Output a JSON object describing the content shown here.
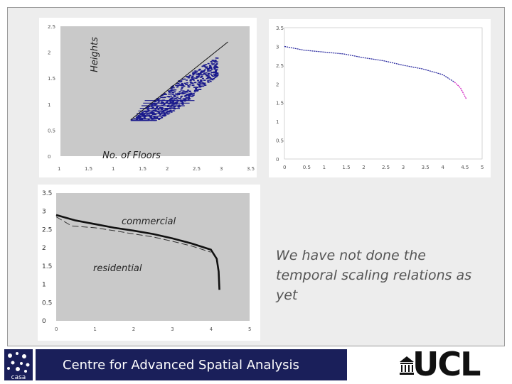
{
  "slide": {
    "statement": "We have not done the temporal scaling relations as yet",
    "footer_text": "Centre for Advanced Spatial Analysis",
    "casa_logo_text": "casa",
    "ucl_logo_text": "UCL"
  },
  "colors": {
    "footer_bar": "#1a1f5a",
    "scatter_points": "#1a1a8c",
    "curve_blue": "#2a2aa0",
    "curve_magenta": "#d020c0",
    "plot_background": "#c9c9c9"
  },
  "chart_data": [
    {
      "type": "scatter",
      "xlabel": "No. of Floors",
      "ylabel": "Heights",
      "x_ticks": [
        "1",
        "1.5",
        "1",
        "1.5",
        "2",
        "2.5",
        "3",
        "3.5"
      ],
      "y_ticks": [
        "2.5",
        "2",
        "1.5",
        "1",
        "0.5",
        "0"
      ],
      "xlim": [
        0,
        3.5
      ],
      "ylim": [
        0,
        2.5
      ],
      "trend_line": [
        [
          1.3,
          0.7
        ],
        [
          3.1,
          2.2
        ]
      ],
      "point_cloud": {
        "x_range": [
          1.3,
          2.9
        ],
        "y_range": [
          0.7,
          1.9
        ]
      },
      "grid": false
    },
    {
      "type": "line",
      "xlabel": "",
      "ylabel": "",
      "x_ticks": [
        "0",
        "0.5",
        "1",
        "1.5",
        "2",
        "2.5",
        "3",
        "3.5",
        "4",
        "4.5",
        "5"
      ],
      "y_ticks": [
        "3.5",
        "3",
        "2.5",
        "2",
        "1.5",
        "1",
        "0.5",
        "0"
      ],
      "xlim": [
        0,
        5
      ],
      "ylim": [
        0,
        3.5
      ],
      "series": [
        {
          "values": [
            [
              0,
              3.0
            ],
            [
              0.5,
              2.9
            ],
            [
              1,
              2.85
            ],
            [
              1.5,
              2.8
            ],
            [
              2,
              2.7
            ],
            [
              2.5,
              2.62
            ],
            [
              3,
              2.5
            ],
            [
              3.5,
              2.4
            ],
            [
              4,
              2.25
            ],
            [
              4.3,
              2.05
            ]
          ]
        },
        {
          "values": [
            [
              4.3,
              2.05
            ],
            [
              4.45,
              1.9
            ],
            [
              4.55,
              1.7
            ],
            [
              4.6,
              1.6
            ]
          ]
        }
      ]
    },
    {
      "type": "line",
      "xlabel": "",
      "ylabel": "",
      "x_ticks": [
        "0",
        "1",
        "2",
        "3",
        "4",
        "5"
      ],
      "y_ticks": [
        "3.5",
        "3",
        "2.5",
        "2",
        "1.5",
        "1",
        "0.5",
        "0"
      ],
      "xlim": [
        0,
        5
      ],
      "ylim": [
        0,
        3.5
      ],
      "annotations": [
        "commercial",
        "residential"
      ],
      "series": [
        {
          "values": [
            [
              0,
              2.9
            ],
            [
              0.5,
              2.75
            ],
            [
              1,
              2.65
            ],
            [
              1.5,
              2.55
            ],
            [
              2,
              2.47
            ],
            [
              2.5,
              2.38
            ],
            [
              3,
              2.26
            ],
            [
              3.5,
              2.12
            ],
            [
              4,
              1.95
            ],
            [
              4.15,
              1.7
            ],
            [
              4.2,
              1.35
            ],
            [
              4.22,
              0.85
            ]
          ]
        },
        {
          "values": [
            [
              0,
              2.85
            ],
            [
              0.4,
              2.6
            ],
            [
              1,
              2.55
            ],
            [
              1.5,
              2.47
            ],
            [
              2,
              2.38
            ],
            [
              2.5,
              2.3
            ],
            [
              3,
              2.18
            ],
            [
              3.5,
              2.05
            ],
            [
              4,
              1.88
            ]
          ]
        }
      ]
    }
  ]
}
